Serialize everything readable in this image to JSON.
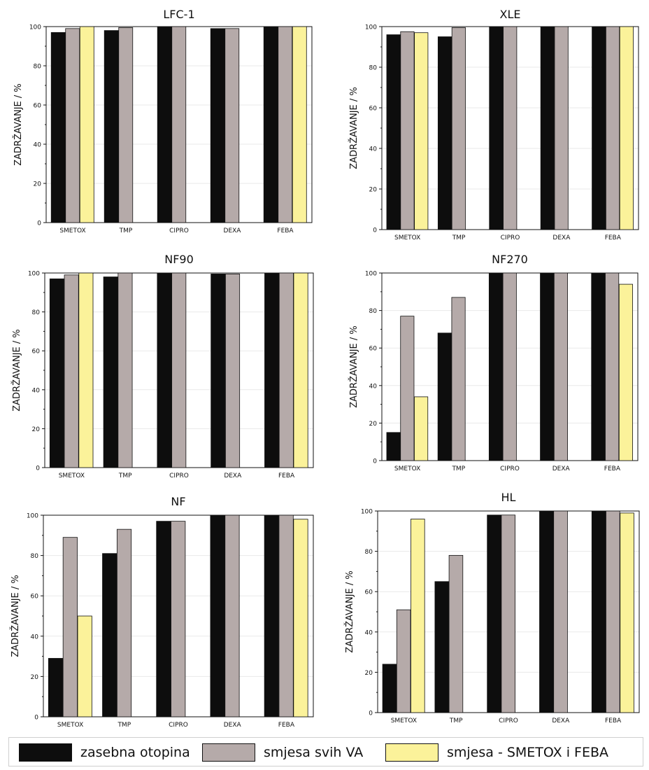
{
  "colors": {
    "zasebna": "#0d0d0d",
    "svih": "#b5aaa9",
    "smetox_feba": "#fbf29a",
    "axis": "#111111",
    "grid": "#e9e9e9"
  },
  "legend": {
    "items": [
      {
        "label": "zasebna otopina",
        "color": "#0d0d0d"
      },
      {
        "label": "smjesa svih VA",
        "color": "#b5aaa9"
      },
      {
        "label": "smjesa - SMETOX i FEBA",
        "color": "#fbf29a"
      }
    ]
  },
  "chart_data": [
    {
      "type": "bar",
      "title": "LFC-1",
      "ylabel": "ZADRŽAVANJE / %",
      "xlabel": "",
      "ylim": [
        0,
        100
      ],
      "yticks": [
        "0",
        "20",
        "40",
        "60",
        "80",
        "100"
      ],
      "grid": true,
      "categories": [
        "SMETOX",
        "TMP",
        "CIPRO",
        "DEXA",
        "FEBA"
      ],
      "series": [
        {
          "name": "zasebna otopina",
          "values": [
            97,
            98,
            100,
            99,
            100
          ]
        },
        {
          "name": "smjesa svih VA",
          "values": [
            99,
            99.5,
            100,
            99,
            100
          ]
        },
        {
          "name": "smjesa - SMETOX i FEBA",
          "values": [
            100,
            null,
            null,
            null,
            100
          ]
        }
      ]
    },
    {
      "type": "bar",
      "title": "XLE",
      "ylabel": "ZADRŽAVANJE / %",
      "xlabel": "",
      "ylim": [
        0,
        100
      ],
      "yticks": [
        "0",
        "20",
        "40",
        "60",
        "80",
        "100"
      ],
      "grid": true,
      "categories": [
        "SMETOX",
        "TMP",
        "CIPRO",
        "DEXA",
        "FEBA"
      ],
      "series": [
        {
          "name": "zasebna otopina",
          "values": [
            96,
            95,
            100,
            100,
            100
          ]
        },
        {
          "name": "smjesa svih VA",
          "values": [
            97.5,
            99.5,
            100,
            100,
            100
          ]
        },
        {
          "name": "smjesa - SMETOX i FEBA",
          "values": [
            97,
            null,
            null,
            null,
            100
          ]
        }
      ]
    },
    {
      "type": "bar",
      "title": "NF90",
      "ylabel": "ZADRŽAVANJE / %",
      "xlabel": "",
      "ylim": [
        0,
        100
      ],
      "yticks": [
        "0",
        "20",
        "40",
        "60",
        "80",
        "100"
      ],
      "grid": true,
      "categories": [
        "SMETOX",
        "TMP",
        "CIPRO",
        "DEXA",
        "FEBA"
      ],
      "series": [
        {
          "name": "zasebna otopina",
          "values": [
            97,
            98,
            100,
            99.5,
            100
          ]
        },
        {
          "name": "smjesa svih VA",
          "values": [
            99,
            100,
            100,
            99.5,
            100
          ]
        },
        {
          "name": "smjesa - SMETOX i FEBA",
          "values": [
            100,
            null,
            null,
            null,
            100
          ]
        }
      ]
    },
    {
      "type": "bar",
      "title": "NF270",
      "ylabel": "ZADRŽAVANJE / %",
      "xlabel": "",
      "ylim": [
        0,
        100
      ],
      "yticks": [
        "0",
        "20",
        "40",
        "60",
        "80",
        "100"
      ],
      "grid": true,
      "categories": [
        "SMETOX",
        "TMP",
        "CIPRO",
        "DEXA",
        "FEBA"
      ],
      "series": [
        {
          "name": "zasebna otopina",
          "values": [
            15,
            68,
            100,
            100,
            100
          ]
        },
        {
          "name": "smjesa svih VA",
          "values": [
            77,
            87,
            100,
            100,
            100
          ]
        },
        {
          "name": "smjesa - SMETOX i FEBA",
          "values": [
            34,
            null,
            null,
            null,
            94
          ]
        }
      ]
    },
    {
      "type": "bar",
      "title": "NF",
      "ylabel": "ZADRŽAVANJE / %",
      "xlabel": "",
      "ylim": [
        0,
        100
      ],
      "yticks": [
        "0",
        "20",
        "40",
        "60",
        "80",
        "100"
      ],
      "grid": true,
      "categories": [
        "SMETOX",
        "TMP",
        "CIPRO",
        "DEXA",
        "FEBA"
      ],
      "series": [
        {
          "name": "zasebna otopina",
          "values": [
            29,
            81,
            97,
            100,
            100
          ]
        },
        {
          "name": "smjesa svih VA",
          "values": [
            89,
            93,
            97,
            100,
            100
          ]
        },
        {
          "name": "smjesa - SMETOX i FEBA",
          "values": [
            50,
            null,
            null,
            null,
            98
          ]
        }
      ]
    },
    {
      "type": "bar",
      "title": "HL",
      "ylabel": "ZADRŽAVANJE / %",
      "xlabel": "",
      "ylim": [
        0,
        100
      ],
      "yticks": [
        "0",
        "20",
        "40",
        "60",
        "80",
        "100"
      ],
      "grid": true,
      "categories": [
        "SMETOX",
        "TMP",
        "CIPRO",
        "DEXA",
        "FEBA"
      ],
      "series": [
        {
          "name": "zasebna otopina",
          "values": [
            24,
            65,
            98,
            100,
            100
          ]
        },
        {
          "name": "smjesa svih VA",
          "values": [
            51,
            78,
            98,
            100,
            100
          ]
        },
        {
          "name": "smjesa - SMETOX i FEBA",
          "values": [
            96,
            null,
            null,
            null,
            99
          ]
        }
      ]
    }
  ]
}
